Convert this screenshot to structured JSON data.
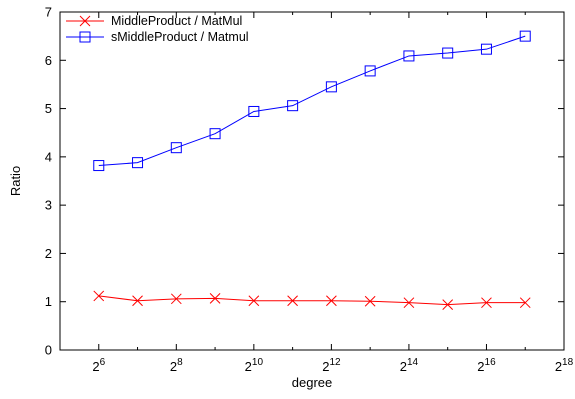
{
  "chart_data": {
    "type": "line",
    "xlabel": "degree",
    "ylabel": "Ratio",
    "x_scale": "log2",
    "xlim": [
      5,
      18
    ],
    "ylim": [
      0,
      7
    ],
    "x_ticks": [
      {
        "base": "2",
        "exp": "6",
        "value": 6
      },
      {
        "base": "2",
        "exp": "8",
        "value": 8
      },
      {
        "base": "2",
        "exp": "10",
        "value": 10
      },
      {
        "base": "2",
        "exp": "12",
        "value": 12
      },
      {
        "base": "2",
        "exp": "14",
        "value": 14
      },
      {
        "base": "2",
        "exp": "16",
        "value": 16
      },
      {
        "base": "2",
        "exp": "18",
        "value": 18
      }
    ],
    "y_ticks": [
      "0",
      "1",
      "2",
      "3",
      "4",
      "5",
      "6",
      "7"
    ],
    "legend_position": "top-left",
    "series": [
      {
        "name": "MiddleProduct / MatMul",
        "color": "#ff0000",
        "marker": "cross",
        "x_exponents": [
          6,
          7,
          8,
          9,
          10,
          11,
          12,
          13,
          14,
          15,
          16,
          17
        ],
        "values": [
          1.12,
          1.02,
          1.06,
          1.07,
          1.02,
          1.02,
          1.02,
          1.01,
          0.98,
          0.94,
          0.98,
          0.98
        ]
      },
      {
        "name": "sMiddleProduct / Matmul",
        "color": "#0000ff",
        "marker": "square",
        "x_exponents": [
          6,
          7,
          8,
          9,
          10,
          11,
          12,
          13,
          14,
          15,
          16,
          17
        ],
        "values": [
          3.82,
          3.88,
          4.19,
          4.48,
          4.94,
          5.06,
          5.45,
          5.78,
          6.09,
          6.15,
          6.23,
          6.5
        ]
      }
    ]
  }
}
